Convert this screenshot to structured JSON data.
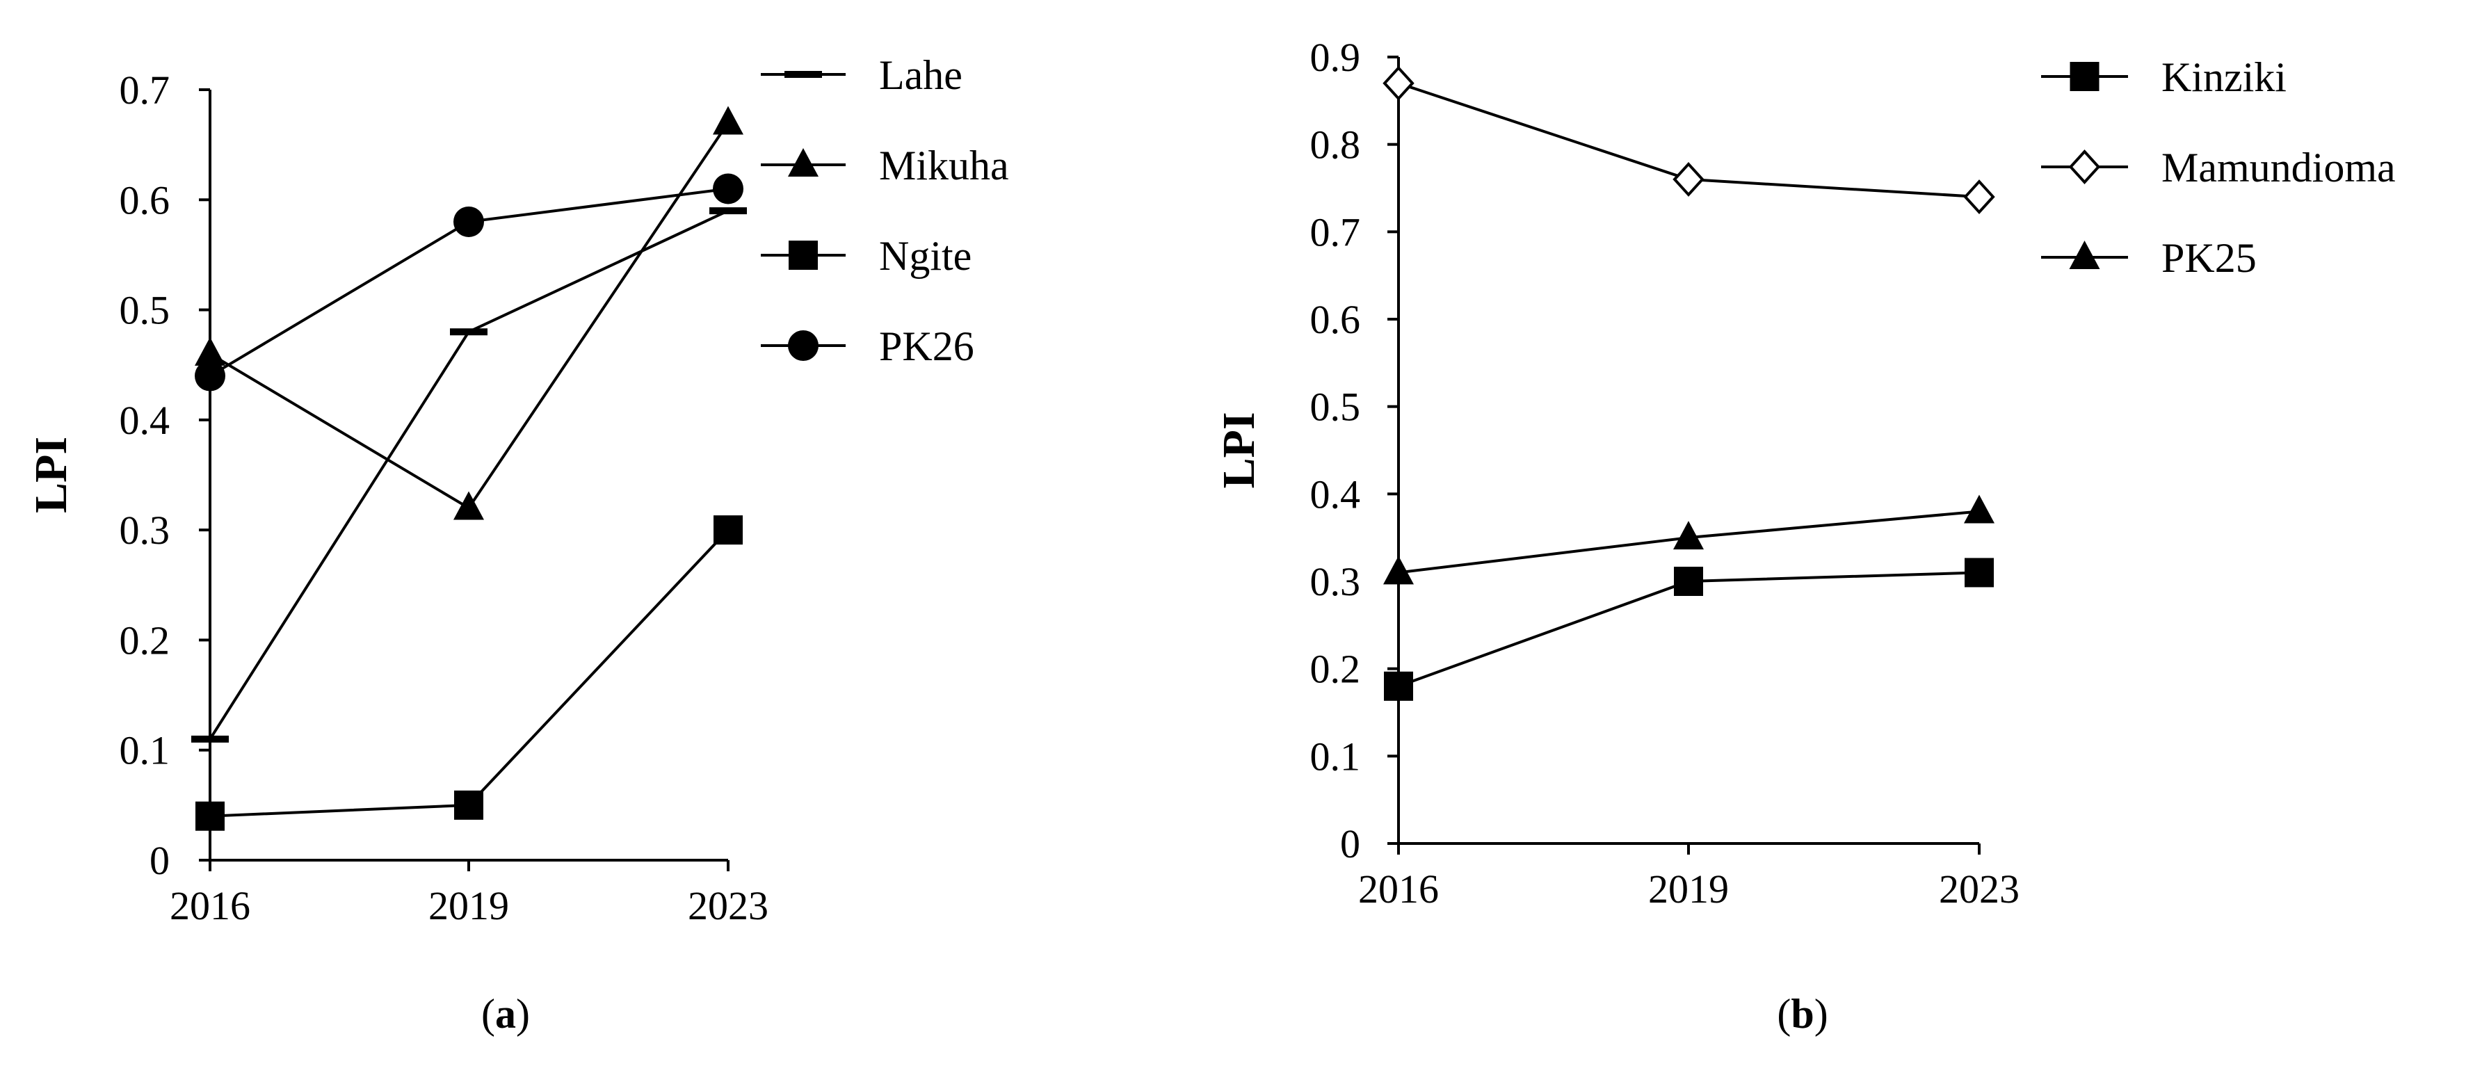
{
  "chart_data": [
    {
      "type": "line",
      "panel_label": "a",
      "categories": [
        "2016",
        "2019",
        "2023"
      ],
      "ylabel": "LPI",
      "xlabel": "",
      "ylim": [
        0,
        0.7
      ],
      "yticks": [
        "0",
        "0.1",
        "0.2",
        "0.3",
        "0.4",
        "0.5",
        "0.6",
        "0.7"
      ],
      "legend_position": "right",
      "series": [
        {
          "name": "Lahe",
          "marker": "dash",
          "values": [
            0.11,
            0.48,
            0.59
          ]
        },
        {
          "name": "Mikuha",
          "marker": "triangle",
          "values": [
            0.46,
            0.32,
            0.67
          ]
        },
        {
          "name": "Ngite",
          "marker": "square",
          "values": [
            0.04,
            0.05,
            0.3
          ]
        },
        {
          "name": "PK26",
          "marker": "circle",
          "values": [
            0.44,
            0.58,
            0.61
          ]
        }
      ]
    },
    {
      "type": "line",
      "panel_label": "b",
      "categories": [
        "2016",
        "2019",
        "2023"
      ],
      "ylabel": "LPI",
      "xlabel": "",
      "ylim": [
        0,
        0.9
      ],
      "yticks": [
        "0",
        "0.1",
        "0.2",
        "0.3",
        "0.4",
        "0.5",
        "0.6",
        "0.7",
        "0.8",
        "0.9"
      ],
      "legend_position": "right",
      "series": [
        {
          "name": "Kinziki",
          "marker": "square",
          "values": [
            0.18,
            0.3,
            0.31
          ]
        },
        {
          "name": "Mamundioma",
          "marker": "diamond-open",
          "values": [
            0.87,
            0.76,
            0.74
          ]
        },
        {
          "name": "PK25",
          "marker": "triangle",
          "values": [
            0.31,
            0.35,
            0.38
          ]
        }
      ]
    }
  ]
}
